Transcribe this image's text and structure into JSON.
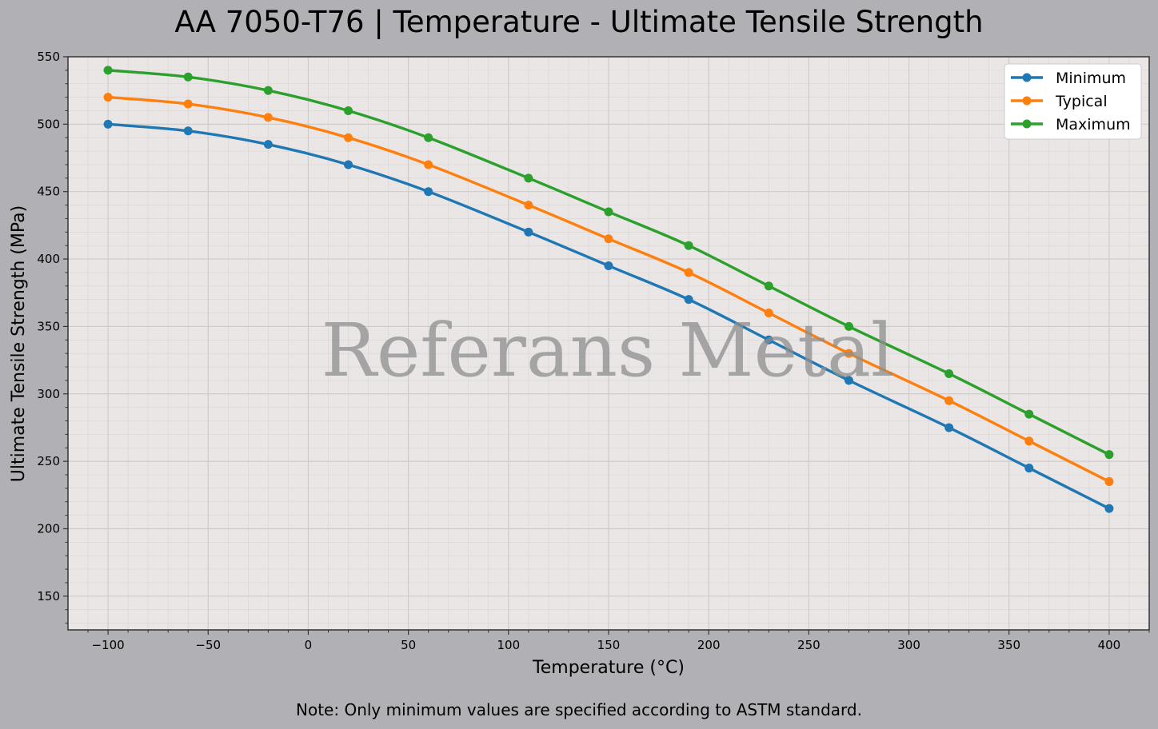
{
  "note": "Note: Only minimum values are specified according to ASTM standard.",
  "chart_data": {
    "type": "line",
    "title": "AA 7050-T76 | Temperature - Ultimate Tensile Strength",
    "xlabel": "Temperature (°C)",
    "ylabel": "Ultimate Tensile Strength (MPa)",
    "watermark": "Referans Metal",
    "xlim": [
      -120,
      420
    ],
    "ylim": [
      125,
      550
    ],
    "xticks": [
      -100,
      -50,
      0,
      50,
      100,
      150,
      200,
      250,
      300,
      350,
      400
    ],
    "xtick_labels": [
      "−100",
      "−50",
      "0",
      "50",
      "100",
      "150",
      "200",
      "250",
      "300",
      "350",
      "400"
    ],
    "yticks": [
      150,
      200,
      250,
      300,
      350,
      400,
      450,
      500,
      550
    ],
    "grid": true,
    "legend_position": "top-right",
    "x": [
      -100,
      -60,
      -20,
      20,
      60,
      110,
      150,
      190,
      230,
      270,
      320,
      360,
      400
    ],
    "series": [
      {
        "name": "Minimum",
        "color": "#1f77b4",
        "values": [
          500,
          495,
          485,
          470,
          450,
          420,
          395,
          370,
          340,
          310,
          275,
          245,
          215
        ]
      },
      {
        "name": "Typical",
        "color": "#ff7f0e",
        "values": [
          520,
          515,
          505,
          490,
          470,
          440,
          415,
          390,
          360,
          330,
          295,
          265,
          235
        ]
      },
      {
        "name": "Maximum",
        "color": "#2ca02c",
        "values": [
          540,
          535,
          525,
          510,
          490,
          460,
          435,
          410,
          380,
          350,
          315,
          285,
          255
        ]
      }
    ]
  }
}
